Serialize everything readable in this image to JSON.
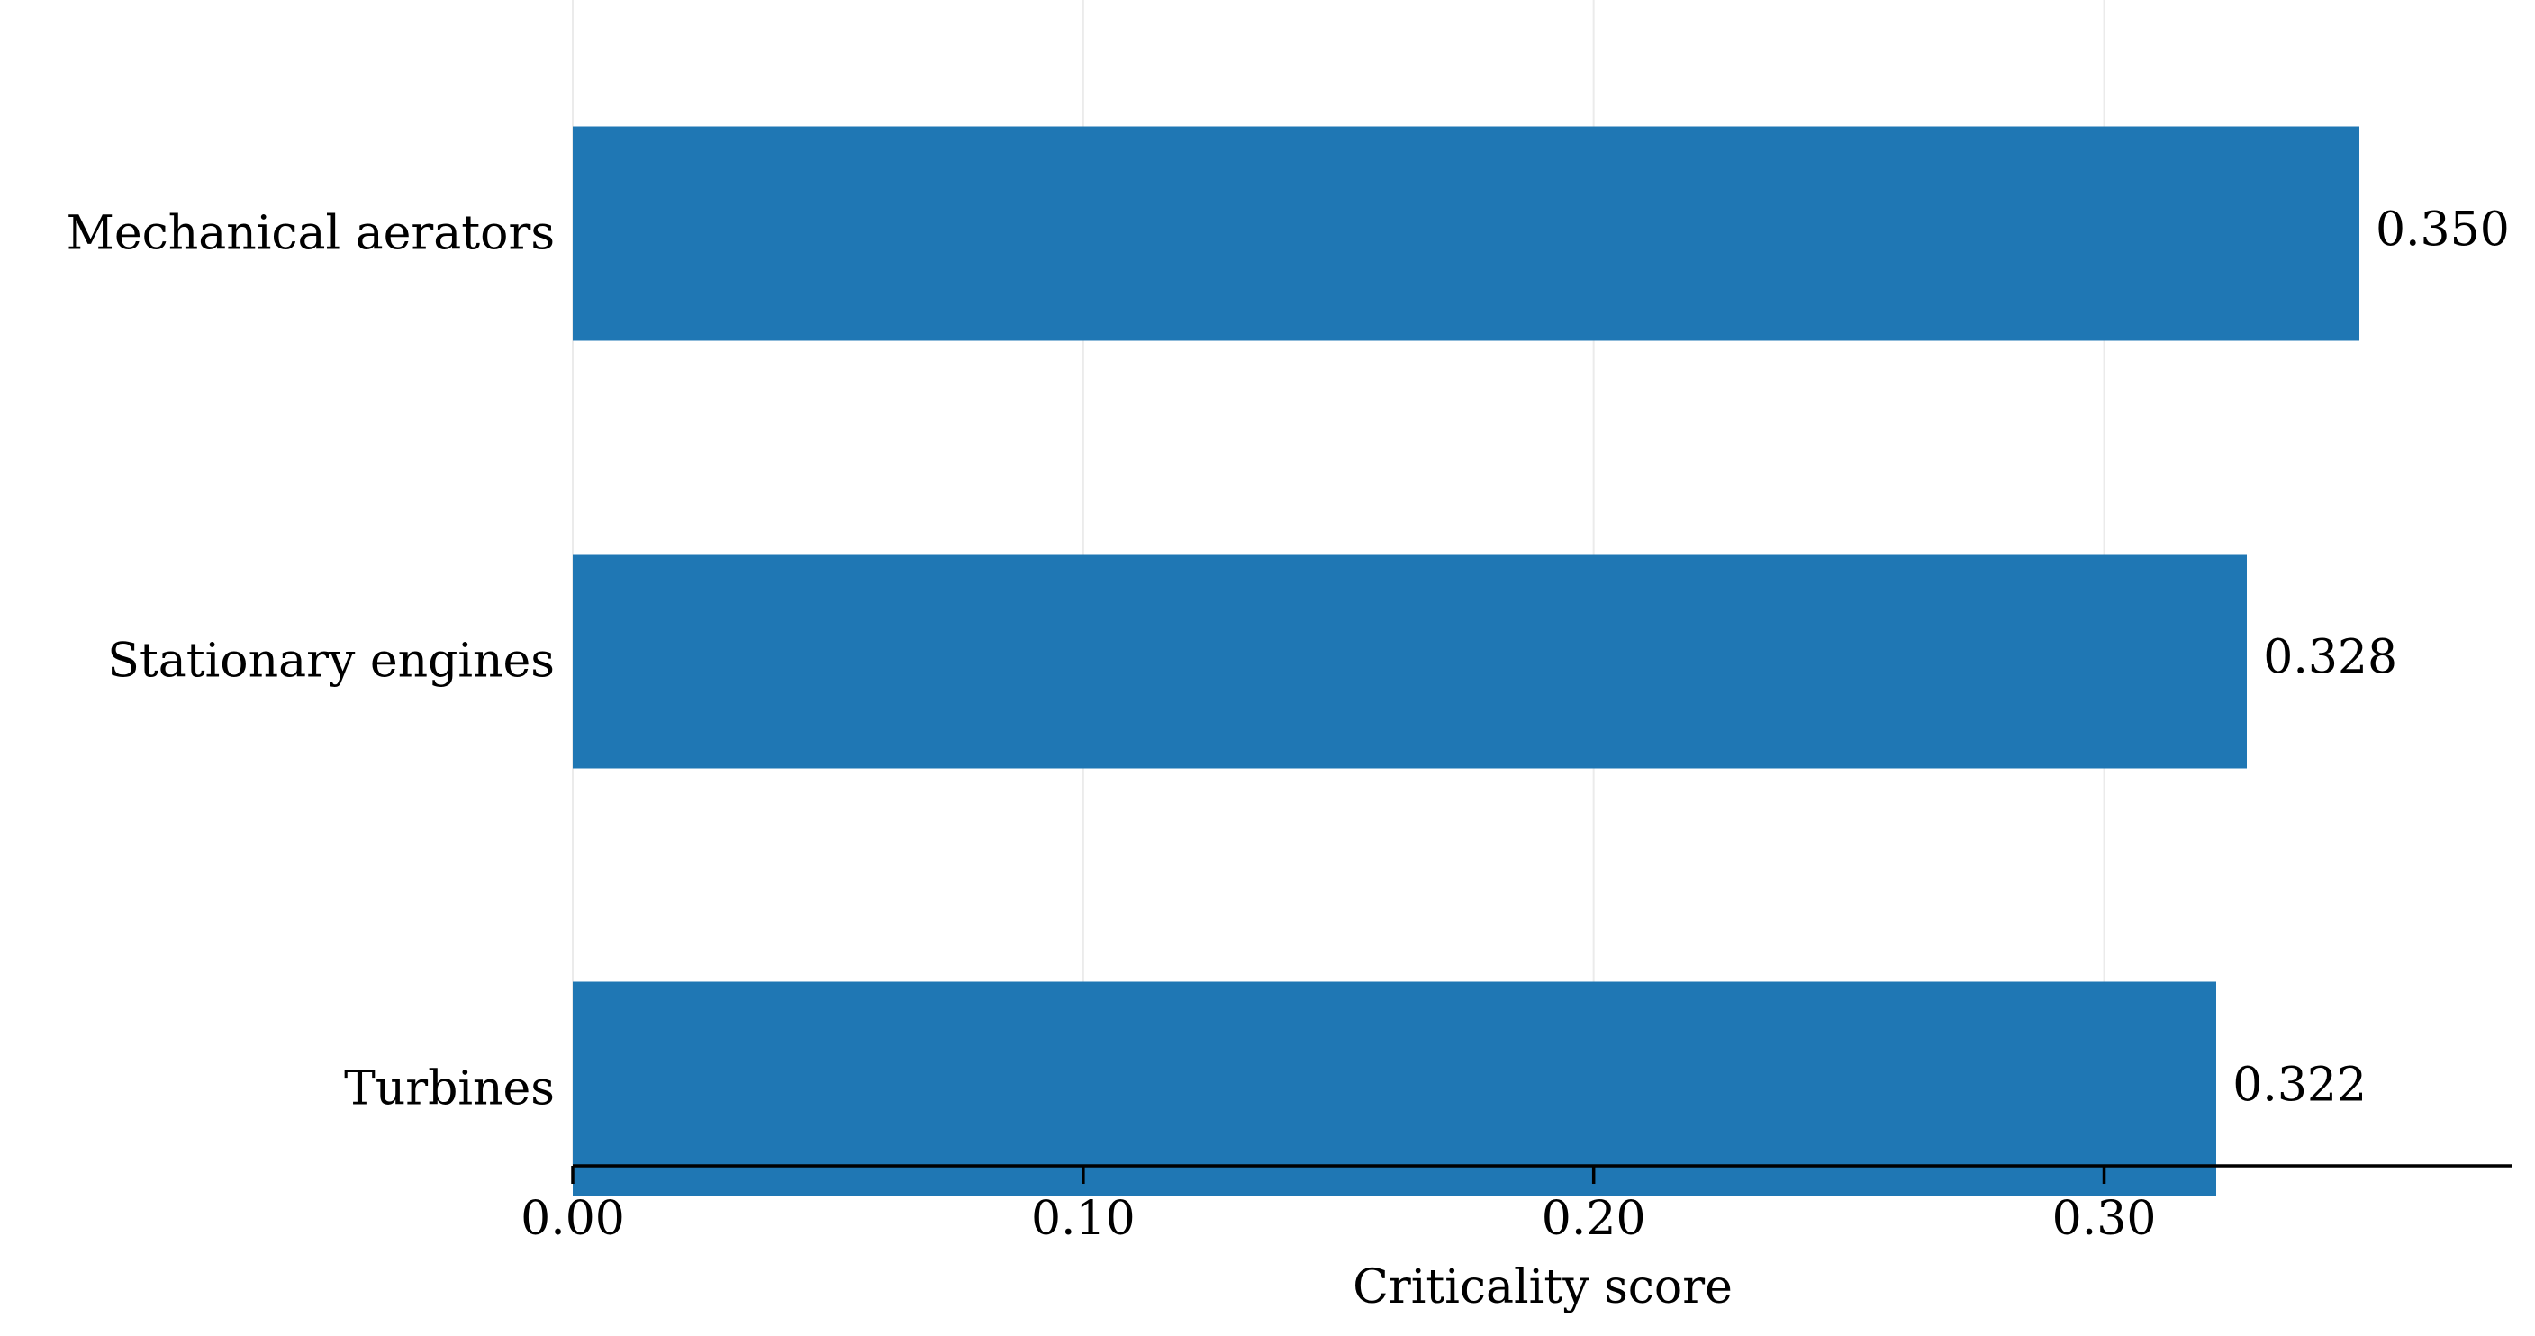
{
  "chart_data": {
    "type": "bar",
    "orientation": "horizontal",
    "categories": [
      "Mechanical aerators",
      "Stationary engines",
      "Turbines"
    ],
    "values": [
      0.35,
      0.328,
      0.322
    ],
    "value_labels": [
      "0.350",
      "0.328",
      "0.322"
    ],
    "xlabel": "Criticality score",
    "ylabel": "",
    "xlim": [
      0,
      0.38
    ],
    "xticks": [
      0,
      0.1,
      0.2,
      0.3
    ],
    "xtick_labels": [
      "0.00",
      "0.10",
      "0.20",
      "0.30"
    ],
    "grid": "vertical",
    "bar_color": "#1f77b4",
    "grid_color": "#ebebeb"
  }
}
